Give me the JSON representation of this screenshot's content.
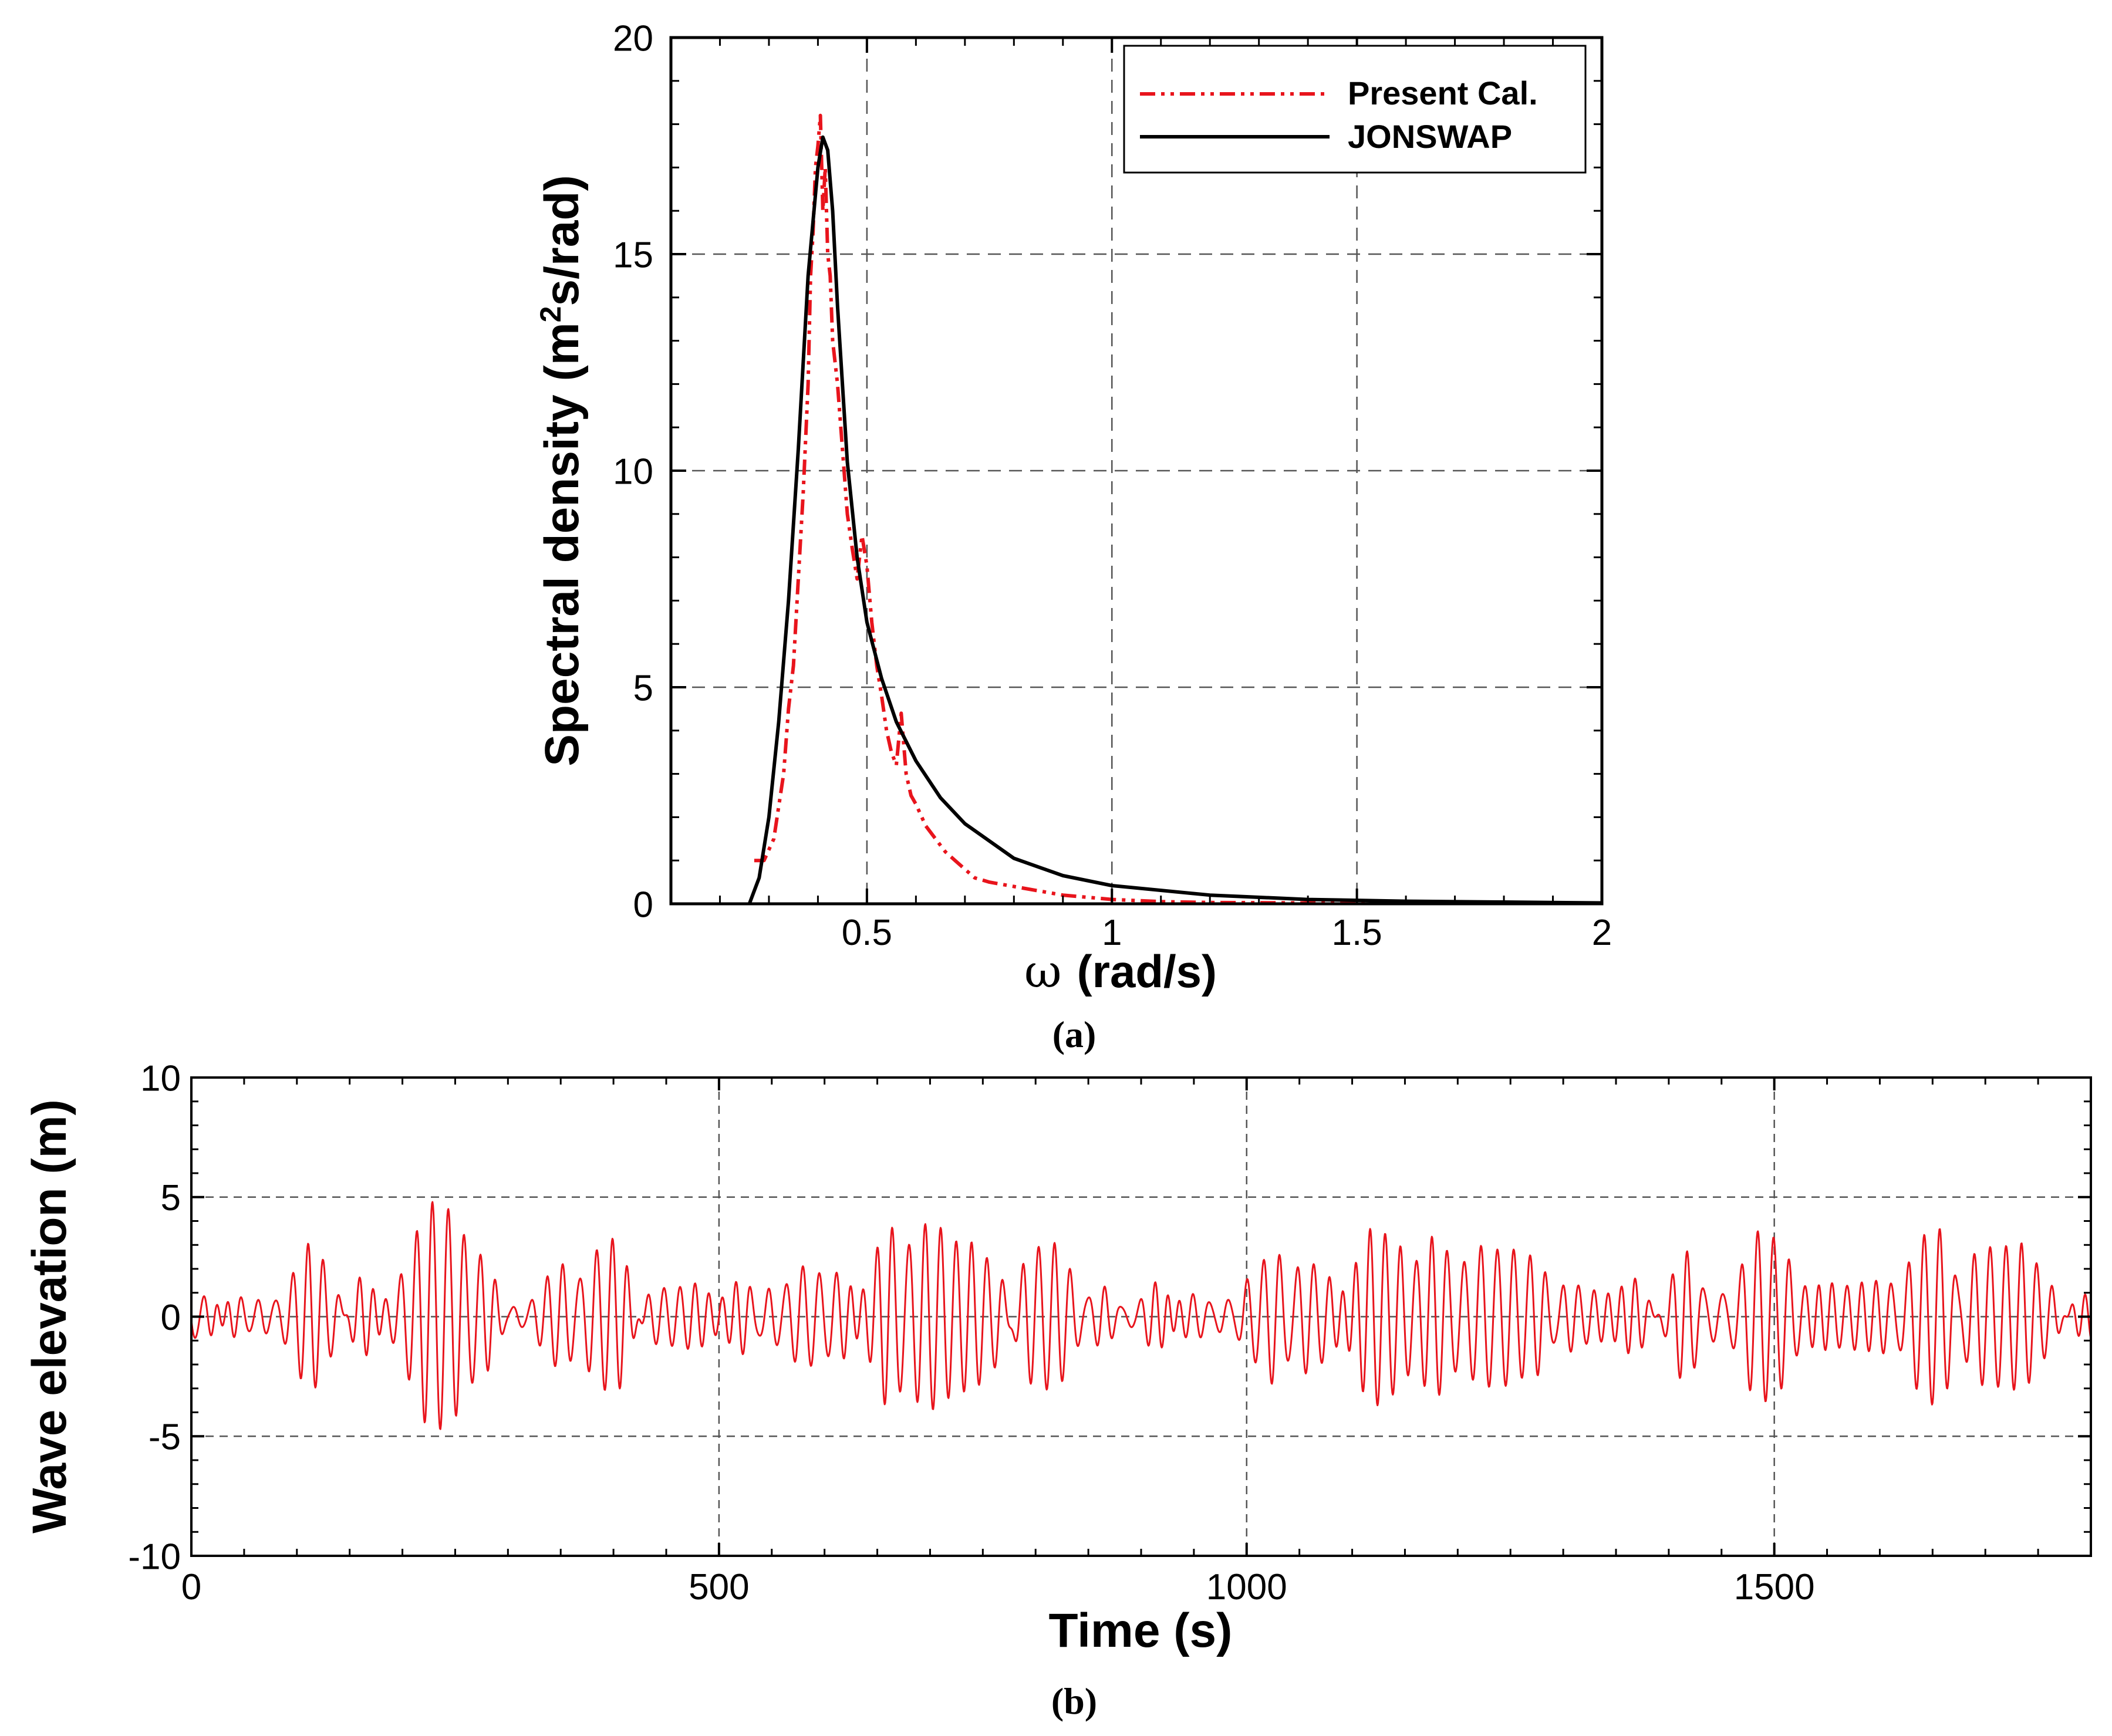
{
  "chart_data": [
    {
      "type": "line",
      "panel_label": "(a)",
      "xlabel_symbol": "ω",
      "xlabel_units": "(rad/s)",
      "ylabel_pre": "Spectral density (m",
      "ylabel_sup": "2",
      "ylabel_post": "s/rad)",
      "xlim": [
        0.1,
        2.0
      ],
      "ylim": [
        0,
        20
      ],
      "xticks": [
        0.5,
        1.0,
        1.5,
        2.0
      ],
      "xtick_labels": [
        "0.5",
        "1",
        "1.5",
        "2"
      ],
      "yticks": [
        0,
        5,
        10,
        15,
        20
      ],
      "ytick_labels": [
        "0",
        "5",
        "10",
        "15",
        "20"
      ],
      "grid": true,
      "legend_position": "top-right",
      "series": [
        {
          "name": "Present Cal.",
          "color": "#e8141c",
          "style": "dash-dot-dot",
          "x": [
            0.27,
            0.29,
            0.31,
            0.33,
            0.34,
            0.35,
            0.36,
            0.37,
            0.38,
            0.385,
            0.39,
            0.395,
            0.4,
            0.405,
            0.41,
            0.415,
            0.42,
            0.425,
            0.43,
            0.44,
            0.45,
            0.46,
            0.47,
            0.48,
            0.49,
            0.5,
            0.51,
            0.52,
            0.53,
            0.54,
            0.55,
            0.56,
            0.57,
            0.58,
            0.59,
            0.6,
            0.62,
            0.64,
            0.66,
            0.68,
            0.7,
            0.72,
            0.75,
            0.8,
            0.85,
            0.9,
            0.95,
            1.0,
            1.1,
            1.2,
            1.4,
            1.6,
            1.8,
            2.0
          ],
          "y": [
            1.0,
            1.0,
            1.5,
            3.0,
            4.5,
            5.5,
            7.5,
            9.5,
            12.0,
            14.5,
            15.5,
            17.0,
            17.5,
            18.2,
            16.0,
            17.0,
            15.0,
            14.5,
            13.0,
            12.0,
            10.5,
            9.0,
            8.2,
            7.5,
            8.5,
            7.8,
            6.5,
            5.5,
            4.8,
            4.0,
            3.5,
            3.2,
            4.4,
            3.0,
            2.5,
            2.3,
            1.8,
            1.5,
            1.2,
            1.0,
            0.8,
            0.6,
            0.5,
            0.4,
            0.3,
            0.2,
            0.15,
            0.1,
            0.05,
            0.03,
            0.02,
            0.01,
            0.01,
            0.0
          ]
        },
        {
          "name": "JONSWAP",
          "color": "#000000",
          "style": "solid",
          "x": [
            0.26,
            0.28,
            0.3,
            0.32,
            0.34,
            0.36,
            0.38,
            0.4,
            0.41,
            0.42,
            0.43,
            0.44,
            0.46,
            0.48,
            0.5,
            0.53,
            0.56,
            0.6,
            0.65,
            0.7,
            0.8,
            0.9,
            1.0,
            1.2,
            1.4,
            1.6,
            1.8,
            2.0
          ],
          "y": [
            0.0,
            0.6,
            2.0,
            4.2,
            7.0,
            10.5,
            14.5,
            17.0,
            17.7,
            17.4,
            16.0,
            13.8,
            10.2,
            8.0,
            6.5,
            5.2,
            4.2,
            3.3,
            2.45,
            1.85,
            1.05,
            0.65,
            0.42,
            0.2,
            0.1,
            0.06,
            0.04,
            0.02
          ]
        }
      ]
    },
    {
      "type": "line",
      "panel_label": "(b)",
      "xlabel": "Time (s)",
      "ylabel": "Wave elevation (m)",
      "xlim": [
        0,
        1800
      ],
      "ylim": [
        -10,
        10
      ],
      "xticks": [
        0,
        500,
        1000,
        1500
      ],
      "xtick_labels": [
        "0",
        "500",
        "1000",
        "1500"
      ],
      "yticks": [
        -10,
        -5,
        0,
        5,
        10
      ],
      "ytick_labels": [
        "-10",
        "-5",
        "0",
        "5",
        "10"
      ],
      "grid": true,
      "series": [
        {
          "name": "Wave elevation",
          "color": "#e8141c",
          "style": "solid",
          "synthesis": {
            "t_start": 0,
            "t_end": 1800,
            "dt": 0.5,
            "components": [
              {
                "omega": 0.39,
                "amp": 0.85,
                "phase": 0.3
              },
              {
                "omega": 0.405,
                "amp": 0.95,
                "phase": 1.7
              },
              {
                "omega": 0.418,
                "amp": 0.9,
                "phase": 4.1
              },
              {
                "omega": 0.43,
                "amp": 0.8,
                "phase": 2.6
              },
              {
                "omega": 0.445,
                "amp": 0.65,
                "phase": 5.2
              },
              {
                "omega": 0.46,
                "amp": 0.55,
                "phase": 0.9
              },
              {
                "omega": 0.48,
                "amp": 0.45,
                "phase": 3.3
              },
              {
                "omega": 0.5,
                "amp": 0.38,
                "phase": 1.1
              },
              {
                "omega": 0.525,
                "amp": 0.3,
                "phase": 4.7
              },
              {
                "omega": 0.375,
                "amp": 0.55,
                "phase": 2.2
              },
              {
                "omega": 0.36,
                "amp": 0.35,
                "phase": 5.9
              },
              {
                "omega": 0.55,
                "amp": 0.22,
                "phase": 0.4
              },
              {
                "omega": 0.6,
                "amp": 0.15,
                "phase": 3.9
              },
              {
                "omega": 0.65,
                "amp": 0.1,
                "phase": 2.8
              }
            ]
          }
        }
      ]
    }
  ]
}
